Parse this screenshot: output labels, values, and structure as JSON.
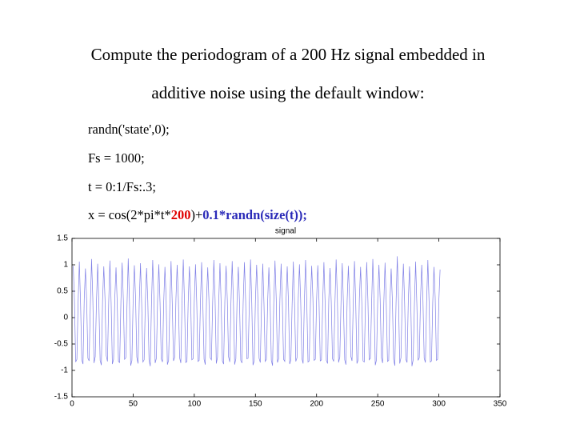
{
  "slide": {
    "title_lines": [
      "Compute the periodogram of a 200 Hz signal embedded in",
      "additive noise using the default window:"
    ],
    "code": [
      "randn('state',0);",
      "Fs = 1000;",
      "t = 0:1/Fs:.3;"
    ],
    "code_last": [
      "x = cos(2*pi*t*",
      "200",
      ")+",
      "0.1*randn(size(t));"
    ]
  },
  "chart_data": {
    "type": "line",
    "title": "signal",
    "color": "#7f7fe6",
    "xlim": [
      0,
      350
    ],
    "xticks": [
      0,
      50,
      100,
      150,
      200,
      250,
      300,
      350
    ],
    "ylim": [
      -1.5,
      1.5
    ],
    "yticks": [
      1.5,
      1,
      0.5,
      0,
      -0.5,
      -1,
      -1.5
    ],
    "values": [
      0.98,
      0.33,
      -0.84,
      -0.79,
      0.29,
      1.06,
      0.27,
      -0.8,
      -0.88,
      0.35,
      0.93,
      0.31,
      -0.77,
      -0.82,
      0.24,
      1.11,
      0.38,
      -0.86,
      -0.74,
      0.3,
      1.02,
      0.22,
      -0.81,
      -0.9,
      0.33,
      0.97,
      0.35,
      -0.72,
      -0.83,
      0.28,
      1.08,
      0.29,
      -0.88,
      -0.79,
      0.37,
      0.95,
      0.26,
      -0.83,
      -0.85,
      0.31,
      1.04,
      0.33,
      -0.79,
      -0.76,
      0.25,
      1.12,
      0.3,
      -0.91,
      -0.81,
      0.34,
      0.99,
      0.36,
      -0.75,
      -0.87,
      0.29,
      1.03,
      0.24,
      -0.84,
      -0.8,
      0.32,
      0.94,
      0.31,
      -0.8,
      -0.92,
      0.27,
      1.09,
      0.37,
      -0.86,
      -0.77,
      0.35,
      1.01,
      0.28,
      -0.78,
      -0.84,
      0.3,
      0.96,
      0.32,
      -0.89,
      -0.81,
      0.23,
      1.07,
      0.25,
      -0.82,
      -0.75,
      0.36,
      1.0,
      0.34,
      -0.76,
      -0.86,
      0.31,
      1.1,
      0.29,
      -0.85,
      -0.83,
      0.28,
      0.97,
      0.39,
      -0.8,
      -0.78,
      0.33,
      1.01,
      0.3,
      -0.83,
      -0.81,
      0.27,
      1.05,
      0.26,
      -0.79,
      -0.89,
      0.34,
      0.95,
      0.33,
      -0.76,
      -0.8,
      0.26,
      1.09,
      0.36,
      -0.87,
      -0.75,
      0.31,
      1.03,
      0.24,
      -0.82,
      -0.88,
      0.32,
      0.98,
      0.34,
      -0.74,
      -0.84,
      0.29,
      1.07,
      0.31,
      -0.89,
      -0.78,
      0.35,
      0.96,
      0.27,
      -0.81,
      -0.86,
      0.3,
      1.05,
      0.32,
      -0.78,
      -0.77,
      0.26,
      1.1,
      0.29,
      -0.9,
      -0.82,
      0.33,
      1.0,
      0.35,
      -0.77,
      -0.85,
      0.28,
      1.02,
      0.25,
      -0.83,
      -0.79,
      0.31,
      0.95,
      0.3,
      -0.81,
      -0.91,
      0.28,
      1.08,
      0.36,
      -0.85,
      -0.78,
      0.34,
      1.02,
      0.29,
      -0.79,
      -0.83,
      0.31,
      0.97,
      0.31,
      -0.88,
      -0.8,
      0.24,
      1.06,
      0.26,
      -0.83,
      -0.76,
      0.35,
      1.01,
      0.33,
      -0.77,
      -0.87,
      0.3,
      1.09,
      0.28,
      -0.84,
      -0.82,
      0.29,
      0.98,
      0.37,
      -0.81,
      -0.79,
      0.32,
      0.99,
      0.32,
      -0.82,
      -0.8,
      0.3,
      1.05,
      0.28,
      -0.81,
      -0.87,
      0.34,
      0.94,
      0.3,
      -0.78,
      -0.83,
      0.25,
      1.1,
      0.37,
      -0.85,
      -0.75,
      0.31,
      1.03,
      0.23,
      -0.8,
      -0.89,
      0.32,
      0.98,
      0.34,
      -0.73,
      -0.82,
      0.29,
      1.07,
      0.3,
      -0.87,
      -0.8,
      0.36,
      0.96,
      0.27,
      -0.82,
      -0.84,
      0.3,
      1.05,
      0.32,
      -0.8,
      -0.77,
      0.26,
      1.11,
      0.31,
      -0.9,
      -0.8,
      0.33,
      1.0,
      0.35,
      -0.76,
      -0.86,
      0.3,
      1.04,
      0.25,
      -0.83,
      -0.81,
      0.31,
      0.93,
      0.32,
      -0.79,
      -0.91,
      0.28,
      1.16,
      0.36,
      -0.87,
      -0.76,
      0.34,
      1.02,
      0.29,
      -0.79,
      -0.85,
      0.31,
      0.97,
      0.33,
      -0.92,
      -0.8,
      0.24,
      1.06,
      0.26,
      -0.81,
      -0.76,
      0.35,
      1.0,
      0.33,
      -0.77,
      -0.85,
      0.3,
      1.09,
      0.3,
      -0.84,
      -0.82,
      0.29,
      0.96,
      0.38,
      -0.81,
      -0.79,
      0.32,
      0.91
    ]
  }
}
